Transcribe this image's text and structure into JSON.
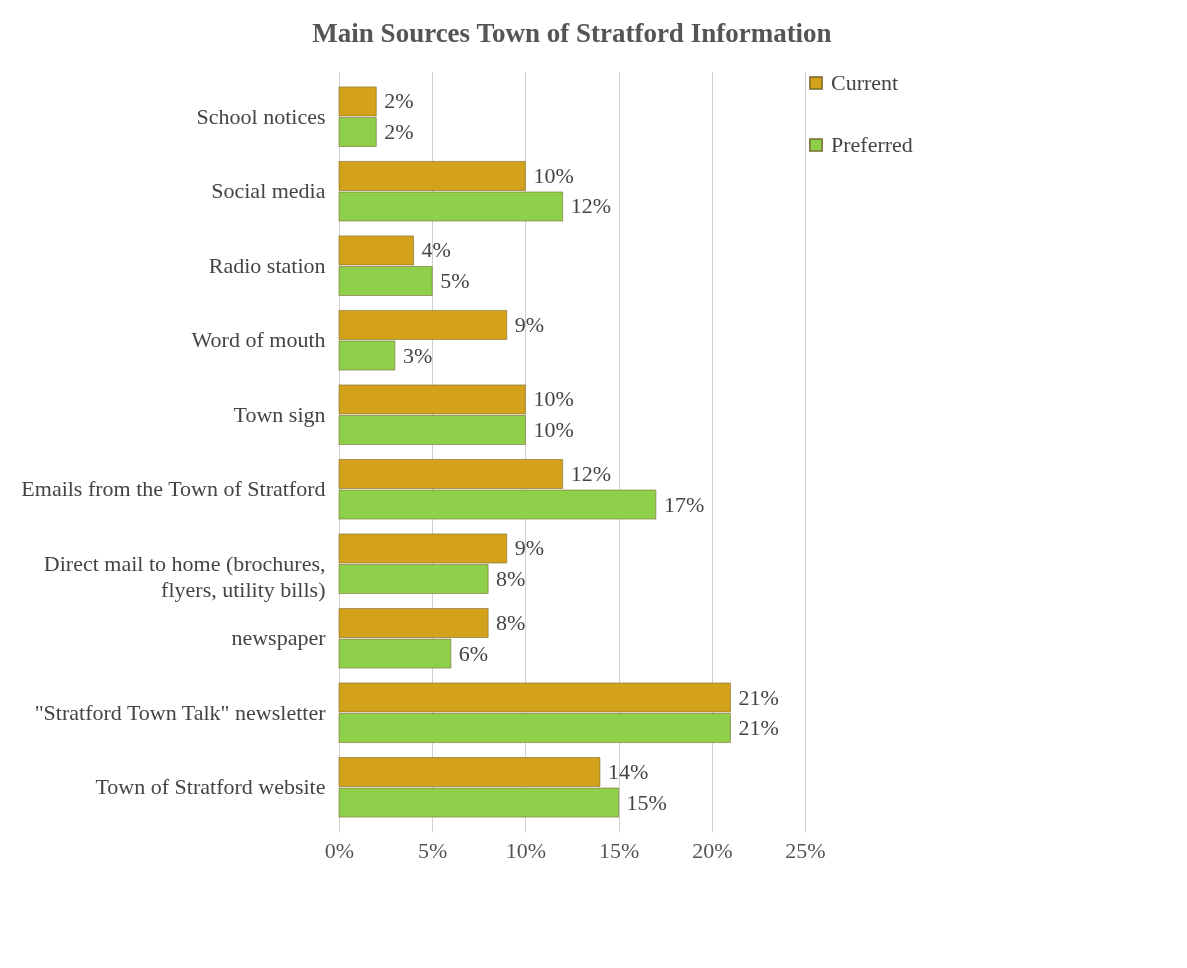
{
  "chart_data": {
    "type": "bar",
    "orientation": "horizontal",
    "title": "Main Sources Town of Stratford Information",
    "categories": [
      "School notices",
      "Social media",
      "Radio station",
      "Word of mouth",
      "Town sign",
      "Emails from the Town of Stratford",
      "Direct mail to home (brochures, flyers, utility bills)",
      "newspaper",
      "\"Stratford Town Talk\" newsletter",
      "Town of Stratford website"
    ],
    "series": [
      {
        "name": "Current",
        "color": "#d4a21a",
        "values": [
          2,
          10,
          4,
          9,
          10,
          12,
          9,
          8,
          21,
          14
        ],
        "value_labels": [
          "2%",
          "10%",
          "4%",
          "9%",
          "10%",
          "12%",
          "9%",
          "8%",
          "21%",
          "14%"
        ]
      },
      {
        "name": "Preferred",
        "color": "#8fd04a",
        "values": [
          2,
          12,
          5,
          3,
          10,
          17,
          8,
          6,
          21,
          15
        ],
        "value_labels": [
          "2%",
          "12%",
          "5%",
          "3%",
          "10%",
          "17%",
          "8%",
          "6%",
          "21%",
          "15%"
        ]
      }
    ],
    "xlim": [
      0,
      25
    ],
    "xticks": [
      {
        "value": 0,
        "label": "0%"
      },
      {
        "value": 5,
        "label": "5%"
      },
      {
        "value": 10,
        "label": "10%"
      },
      {
        "value": 15,
        "label": "15%"
      },
      {
        "value": 20,
        "label": "20%"
      },
      {
        "value": 25,
        "label": "25%"
      }
    ],
    "grid": "x",
    "legend": "right"
  }
}
